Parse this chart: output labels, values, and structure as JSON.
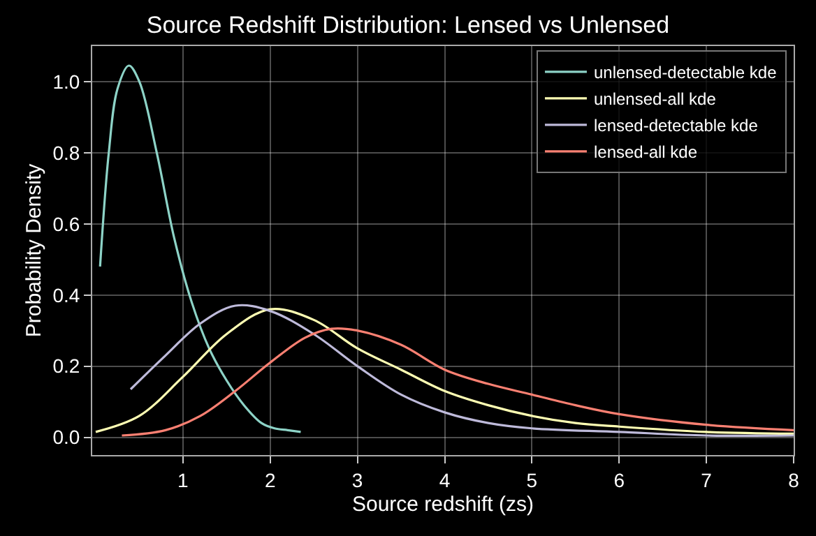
{
  "chart_data": {
    "type": "line",
    "title": "Source Redshift Distribution: Lensed vs Unlensed",
    "xlabel": "Source redshift (zs)",
    "ylabel": "Probability Density",
    "xlim": [
      -0.04,
      8
    ],
    "ylim": [
      -0.05,
      1.1
    ],
    "xticks": [
      1,
      2,
      3,
      4,
      5,
      6,
      7,
      8
    ],
    "yticks": [
      {
        "value": 0,
        "label": "0.0"
      },
      0.2,
      0.4,
      0.6,
      0.8,
      {
        "value": 1,
        "label": "1.0"
      }
    ],
    "grid": true,
    "legend": "top right",
    "marker": "none",
    "line_style": "solid",
    "series": [
      {
        "name": "unlensed-detectable kde",
        "color": "#8dd3c7",
        "x": [
          0.05,
          0.15,
          0.25,
          0.38,
          0.5,
          0.7,
          0.9,
          1.1,
          1.3,
          1.5,
          1.7,
          1.9,
          2.05,
          2.2,
          2.35
        ],
        "values": [
          0.48,
          0.8,
          0.98,
          1.045,
          1.0,
          0.8,
          0.56,
          0.38,
          0.25,
          0.16,
          0.09,
          0.04,
          0.025,
          0.02,
          0.015
        ]
      },
      {
        "name": "unlensed-all kde",
        "color": "#ffffb3",
        "x": [
          0.0,
          0.5,
          1.0,
          1.5,
          2.0,
          2.5,
          3.0,
          3.5,
          4.0,
          4.5,
          5.0,
          5.5,
          6.0,
          7.0,
          8.0
        ],
        "values": [
          0.015,
          0.06,
          0.17,
          0.29,
          0.36,
          0.33,
          0.25,
          0.19,
          0.13,
          0.09,
          0.06,
          0.04,
          0.03,
          0.015,
          0.01
        ]
      },
      {
        "name": "lensed-detectable kde",
        "color": "#bebada",
        "x": [
          0.4,
          0.8,
          1.2,
          1.6,
          2.0,
          2.5,
          3.0,
          3.5,
          4.0,
          4.5,
          5.0,
          6.0,
          7.0,
          8.0
        ],
        "values": [
          0.135,
          0.23,
          0.32,
          0.37,
          0.355,
          0.29,
          0.2,
          0.12,
          0.07,
          0.04,
          0.025,
          0.015,
          0.005,
          0.005
        ]
      },
      {
        "name": "lensed-all kde",
        "color": "#fb8072",
        "x": [
          0.3,
          0.8,
          1.2,
          1.6,
          2.0,
          2.4,
          2.7,
          3.0,
          3.5,
          4.0,
          4.5,
          5.0,
          5.5,
          6.0,
          7.0,
          8.0
        ],
        "values": [
          0.005,
          0.02,
          0.06,
          0.13,
          0.21,
          0.28,
          0.305,
          0.3,
          0.26,
          0.19,
          0.15,
          0.12,
          0.09,
          0.065,
          0.035,
          0.02
        ]
      }
    ]
  }
}
